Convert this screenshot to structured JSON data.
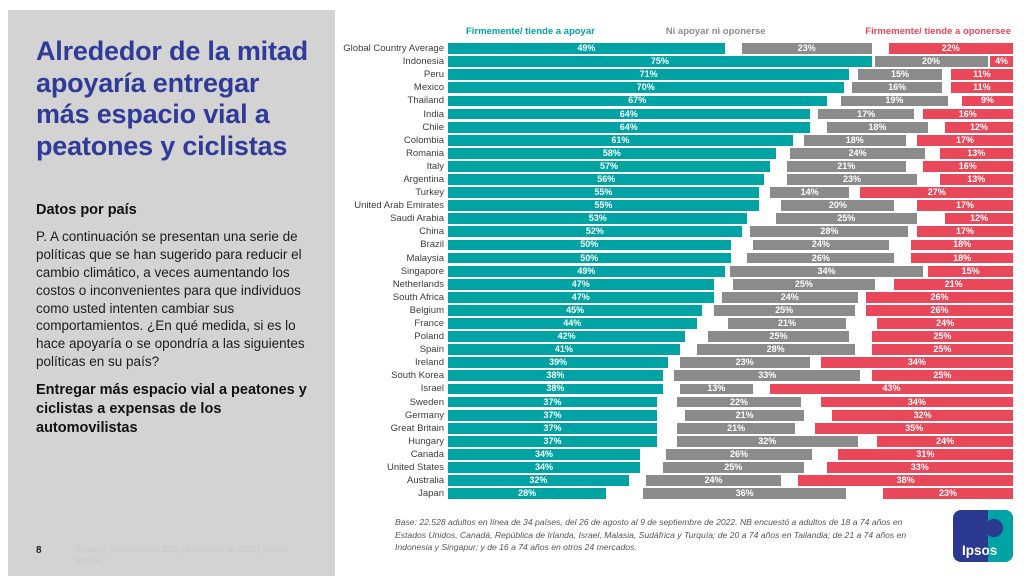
{
  "slide": {
    "title": "Alrededor de la mitad apoyaría entregar más espacio vial a peatones y ciclistas",
    "subheading": "Datos por país",
    "question": "P. A continuación se presentan una serie de políticas que se han sugerido para reducir el cambio climático, a veces aumentando los costos o inconvenientes para que individuos como usted intenten cambiar sus comportamientos. ¿En qué medida, si es lo hace apoyaría o se opondría a las siguientes políticas en su país?",
    "policy": "Entregar más espacio vial a peatones y ciclistas a expensas de los automovilistas",
    "page_number": "8",
    "copyright": "© Ipsos | Sostenibilidad 2022 | Noviembre de 2022 | Versión pública",
    "logo_text": "Ipsos"
  },
  "colors": {
    "title_blue": "#2F3A99",
    "panel_gray": "#D3D3D3",
    "support_teal": "#00A3A3",
    "neutral_gray": "#8B8B8B",
    "oppose_red": "#E8485A",
    "logo_blue": "#2B3990"
  },
  "chart_data": {
    "type": "bar",
    "orientation": "horizontal",
    "stacked": true,
    "unit": "%",
    "xlim": [
      0,
      100
    ],
    "legend_position": "top",
    "note": "Base: 22.528 adultos en línea de 34 países, del 26 de agosto al 9 de septiembre de 2022. NB encuestó a adultos de 18 a 74 años en Estados Unidos, Canadá, República de Irlanda, Israel, Malasia, Sudáfrica y Turquía; de 20 a 74 años en Tailandia; de 21 a 74 años en Indonesia y Singapur; y de 16 a 74 años en otros 24 mercados.",
    "categories": [
      "Global Country Average",
      "Indonesia",
      "Peru",
      "Mexico",
      "Thailand",
      "India",
      "Chile",
      "Colombia",
      "Romania",
      "Italy",
      "Argentina",
      "Turkey",
      "United Arab Emirates",
      "Saudi Arabia",
      "China",
      "Brazil",
      "Malaysia",
      "Singapore",
      "Netherlands",
      "South Africa",
      "Belgium",
      "France",
      "Poland",
      "Spain",
      "Ireland",
      "South Korea",
      "Israel",
      "Sweden",
      "Germany",
      "Great Britain",
      "Hungary",
      "Canada",
      "United States",
      "Australia",
      "Japan"
    ],
    "series": [
      {
        "name": "Firmemente/ tiende a apoyar",
        "color": "#00A3A3",
        "values": [
          49,
          75,
          71,
          70,
          67,
          64,
          64,
          61,
          58,
          57,
          56,
          55,
          55,
          53,
          52,
          50,
          50,
          49,
          47,
          47,
          45,
          44,
          42,
          41,
          39,
          38,
          38,
          37,
          37,
          37,
          37,
          34,
          34,
          32,
          28
        ]
      },
      {
        "name": "Ni apoyar ni oponerse",
        "color": "#8B8B8B",
        "values": [
          23,
          20,
          15,
          16,
          19,
          17,
          18,
          18,
          24,
          21,
          23,
          14,
          20,
          25,
          28,
          24,
          26,
          34,
          25,
          24,
          25,
          21,
          25,
          28,
          23,
          33,
          13,
          22,
          21,
          21,
          32,
          26,
          25,
          24,
          36
        ]
      },
      {
        "name": "Firmemente/ tiende a oponersee",
        "color": "#E8485A",
        "values": [
          22,
          4,
          11,
          11,
          9,
          16,
          12,
          17,
          13,
          16,
          13,
          27,
          17,
          12,
          17,
          18,
          18,
          15,
          21,
          26,
          26,
          24,
          25,
          25,
          34,
          25,
          43,
          34,
          32,
          35,
          24,
          31,
          33,
          38,
          23
        ]
      }
    ]
  }
}
